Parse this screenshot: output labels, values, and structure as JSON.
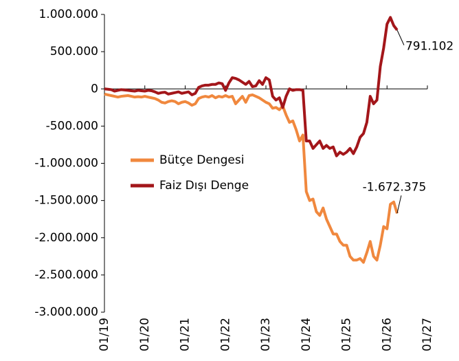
{
  "chart_data": {
    "type": "line",
    "categories": [
      "01/19",
      null,
      null,
      null,
      null,
      null,
      null,
      null,
      null,
      null,
      null,
      null,
      "01/20",
      null,
      null,
      null,
      null,
      null,
      null,
      null,
      null,
      null,
      null,
      null,
      "01/21",
      null,
      null,
      null,
      null,
      null,
      null,
      null,
      null,
      null,
      null,
      null,
      "01/22",
      null,
      null,
      null,
      null,
      null,
      null,
      null,
      null,
      null,
      null,
      null,
      "01/23",
      null,
      null,
      null,
      null,
      null,
      null,
      null,
      null,
      null,
      null,
      null,
      "01/24",
      null,
      null,
      null,
      null,
      null,
      null,
      null,
      null,
      null,
      null,
      null,
      "01/25",
      null,
      null,
      null,
      null,
      null,
      null,
      null,
      null,
      null,
      null,
      null,
      "01/26",
      null,
      null,
      null,
      null,
      null,
      null,
      null,
      null,
      null,
      null,
      null,
      "01/27"
    ],
    "series": [
      {
        "name": "Bütçe Dengesi",
        "color": "#f0883e",
        "values": [
          -70000,
          -80000,
          -90000,
          -100000,
          -110000,
          -100000,
          -95000,
          -90000,
          -100000,
          -110000,
          -105000,
          -110000,
          -100000,
          -110000,
          -120000,
          -130000,
          -150000,
          -180000,
          -190000,
          -170000,
          -160000,
          -170000,
          -200000,
          -180000,
          -170000,
          -190000,
          -220000,
          -200000,
          -130000,
          -110000,
          -100000,
          -110000,
          -90000,
          -120000,
          -100000,
          -110000,
          -90000,
          -110000,
          -100000,
          -200000,
          -150000,
          -100000,
          -180000,
          -90000,
          -80000,
          -100000,
          -120000,
          -150000,
          -180000,
          -200000,
          -260000,
          -250000,
          -280000,
          -230000,
          -350000,
          -450000,
          -430000,
          -550000,
          -700000,
          -620000,
          -1380000,
          -1500000,
          -1480000,
          -1650000,
          -1700000,
          -1600000,
          -1750000,
          -1850000,
          -1950000,
          -1950000,
          -2050000,
          -2100000,
          -2100000,
          -2250000,
          -2300000,
          -2300000,
          -2280000,
          -2330000,
          -2200000,
          -2050000,
          -2250000,
          -2300000,
          -2100000,
          -1850000,
          -1880000,
          -1550000,
          -1520000,
          -1672375,
          null,
          null,
          null,
          null,
          null,
          null,
          null,
          null,
          null
        ]
      },
      {
        "name": "Faiz Dışı Denge",
        "color": "#a3161a",
        "values": [
          0,
          -5000,
          -10000,
          -30000,
          -20000,
          -10000,
          -15000,
          -20000,
          -25000,
          -30000,
          -20000,
          -25000,
          -30000,
          -20000,
          -25000,
          -40000,
          -60000,
          -50000,
          -45000,
          -70000,
          -60000,
          -50000,
          -40000,
          -60000,
          -50000,
          -40000,
          -80000,
          -60000,
          20000,
          40000,
          50000,
          50000,
          60000,
          60000,
          80000,
          70000,
          -20000,
          80000,
          150000,
          140000,
          120000,
          90000,
          60000,
          100000,
          30000,
          40000,
          110000,
          60000,
          150000,
          120000,
          -100000,
          -150000,
          -120000,
          -250000,
          -100000,
          0,
          -20000,
          -10000,
          -10000,
          -20000,
          -700000,
          -700000,
          -800000,
          -750000,
          -700000,
          -800000,
          -760000,
          -800000,
          -780000,
          -900000,
          -850000,
          -880000,
          -850000,
          -800000,
          -870000,
          -780000,
          -650000,
          -600000,
          -450000,
          -100000,
          -200000,
          -150000,
          300000,
          550000,
          870000,
          960000,
          850000,
          791102,
          null,
          null,
          null,
          null,
          null,
          null,
          null,
          null,
          null
        ]
      }
    ],
    "ylim": [
      -3000000,
      1000000
    ],
    "yticks": [
      {
        "value": 1000000,
        "label": "1.000.000"
      },
      {
        "value": 500000,
        "label": "500.000"
      },
      0,
      {
        "value": -500000,
        "label": "-500.000"
      },
      {
        "value": -1000000,
        "label": "-1.000.000"
      },
      {
        "value": -1500000,
        "label": "-1.500.000"
      },
      {
        "value": -2000000,
        "label": "-2.000.000"
      },
      {
        "value": -2500000,
        "label": "-2.500.000"
      },
      {
        "value": -3000000,
        "label": "-3.000.000"
      }
    ],
    "annotations": [
      {
        "text": "791.102",
        "value": 791102
      },
      {
        "text": "-1.672.375",
        "value": -1672375
      }
    ]
  }
}
